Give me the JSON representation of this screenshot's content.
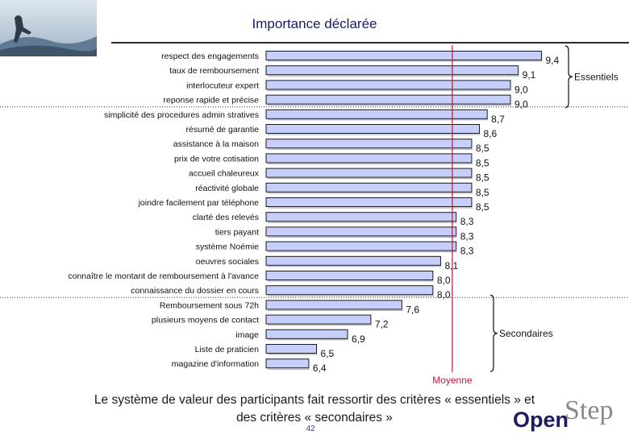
{
  "header": {
    "title": "Importance déclarée"
  },
  "chart_data": {
    "type": "bar",
    "orientation": "horizontal",
    "title": "Importance déclarée",
    "categories": [
      "respect des engagements",
      "taux de remboursement",
      "interlocuteur expert",
      "reponse rapide et précise",
      "simplicité des procedures admin stratives",
      "résumé de garantie",
      "assistance à la maison",
      "prix de votre cotisation",
      "accueil chaleureux",
      "réactivité globale",
      "joindre facilement par téléphone",
      "clarté des relevés",
      "tiers payant",
      "système Noémie",
      "oeuvres sociales",
      "connaître le montant de remboursement à l'avance",
      "connaissance du dossier en cours",
      "Remboursement sous 72h",
      "plusieurs moyens de contact",
      "image",
      "Liste de praticien",
      "magazine d'information"
    ],
    "values": [
      9.4,
      9.1,
      9.0,
      9.0,
      8.7,
      8.6,
      8.5,
      8.5,
      8.5,
      8.5,
      8.5,
      8.3,
      8.3,
      8.3,
      8.1,
      8.0,
      8.0,
      7.6,
      7.2,
      6.9,
      6.5,
      6.4
    ],
    "value_labels": [
      "9,4",
      "9,1",
      "9,0",
      "9,0",
      "8,7",
      "8,6",
      "8,5",
      "8,5",
      "8,5",
      "8,5",
      "8,5",
      "8,3",
      "8,3",
      "8,3",
      "8,1",
      "8,0",
      "8,0",
      "7,6",
      "7,2",
      "6,9",
      "6,5",
      "6,4"
    ],
    "xlim": [
      5.85,
      9.55
    ],
    "mean_line": {
      "value": 8.25,
      "label": "Moyenne"
    },
    "groups": [
      {
        "label": "Essentiels",
        "start": 0,
        "end": 3
      },
      {
        "label": "Secondaires",
        "start": 17,
        "end": 21
      }
    ],
    "group_separators_after": [
      3,
      16
    ]
  },
  "colors": {
    "bar_fill": "#c6cffa",
    "bar_stroke": "#1a1a1a",
    "mean_line": "#c0183c",
    "title": "#1a1a6a",
    "page_number": "#3333aa",
    "brand_dark": "#1c1c5e",
    "brand_light": "#8a8a8a"
  },
  "footer": {
    "line1": "Le système de valeur des participants fait ressortir des critères « essentiels » et",
    "line2": "des critères « secondaires »",
    "page_number": "42"
  },
  "brand": {
    "part1": "Open",
    "part2": "Step"
  }
}
